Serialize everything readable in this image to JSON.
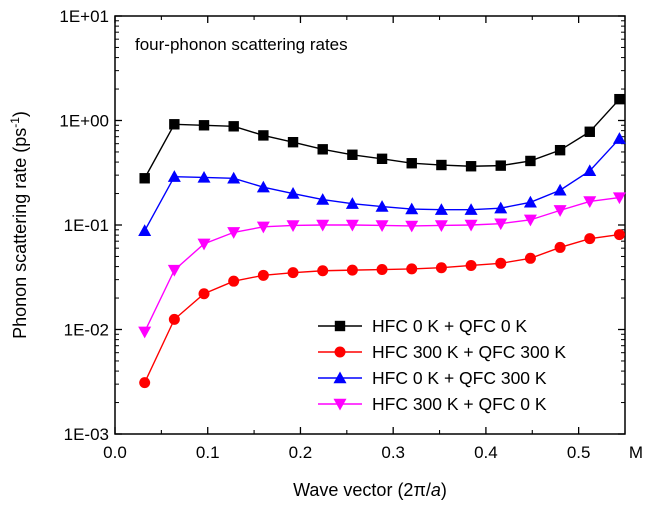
{
  "chart_data": {
    "type": "line",
    "annotation": "four-phonon scattering rates",
    "xlabel": "Wave vector (2π/a)",
    "xlabel_parts": {
      "prefix": "Wave vector (2",
      "pi": "π",
      "slash": "/",
      "a": "a",
      "suffix": ")"
    },
    "ylabel": "Phonon scattering rate (ps-1)",
    "ylabel_parts": {
      "base": "Phonon scattering rate (ps",
      "sup": "-1",
      "suffix": ")"
    },
    "y_scale": "log",
    "xlim": [
      0.0,
      0.55
    ],
    "ylim": [
      0.001,
      10
    ],
    "x_ticks": [
      {
        "value": 0.0,
        "label": "0.0"
      },
      {
        "value": 0.1,
        "label": "0.1"
      },
      {
        "value": 0.2,
        "label": "0.2"
      },
      {
        "value": 0.3,
        "label": "0.3"
      },
      {
        "value": 0.4,
        "label": "0.4"
      },
      {
        "value": 0.5,
        "label": "0.5"
      }
    ],
    "x_end_label": "M",
    "y_ticks": [
      {
        "value": 10,
        "label": "1E+01"
      },
      {
        "value": 1,
        "label": "1E+00"
      },
      {
        "value": 0.1,
        "label": "1E-01"
      },
      {
        "value": 0.01,
        "label": "1E-02"
      },
      {
        "value": 0.001,
        "label": "1E-03"
      }
    ],
    "grid": false,
    "legend_position": "bottom-right",
    "x": [
      0.032,
      0.064,
      0.096,
      0.128,
      0.16,
      0.192,
      0.224,
      0.256,
      0.288,
      0.32,
      0.352,
      0.384,
      0.416,
      0.448,
      0.48,
      0.512,
      0.544
    ],
    "series": [
      {
        "name": "HFC 0 K + QFC 0 K",
        "color": "#000000",
        "marker": "square",
        "values": [
          0.28,
          0.92,
          0.9,
          0.88,
          0.72,
          0.62,
          0.53,
          0.47,
          0.43,
          0.39,
          0.375,
          0.365,
          0.37,
          0.41,
          0.52,
          0.78,
          1.6
        ]
      },
      {
        "name": "HFC 300 K + QFC 300 K",
        "color": "#ff0000",
        "marker": "circle",
        "values": [
          0.0031,
          0.0125,
          0.022,
          0.029,
          0.033,
          0.035,
          0.0365,
          0.037,
          0.0375,
          0.038,
          0.039,
          0.041,
          0.043,
          0.048,
          0.061,
          0.074,
          0.081
        ]
      },
      {
        "name": "HFC 0 K + QFC 300 K",
        "color": "#0000ff",
        "marker": "triangle-up",
        "values": [
          0.088,
          0.29,
          0.285,
          0.28,
          0.23,
          0.2,
          0.175,
          0.16,
          0.15,
          0.142,
          0.14,
          0.14,
          0.145,
          0.165,
          0.215,
          0.33,
          0.67
        ]
      },
      {
        "name": "HFC 300 K + QFC 0 K",
        "color": "#ff00ff",
        "marker": "triangle-down",
        "values": [
          0.0095,
          0.037,
          0.066,
          0.085,
          0.096,
          0.099,
          0.1,
          0.1,
          0.099,
          0.098,
          0.099,
          0.1,
          0.103,
          0.112,
          0.138,
          0.168,
          0.183
        ]
      }
    ]
  }
}
